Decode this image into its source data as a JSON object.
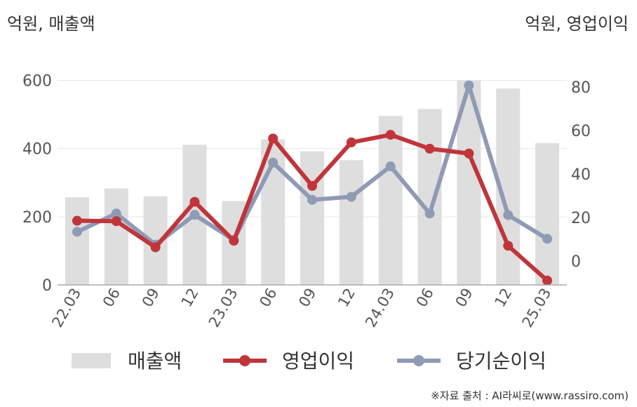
{
  "header": {
    "left_unit": "억원, 매출액",
    "right_unit": "억원, 영업이익"
  },
  "source": "※자료 출처 : AI라씨로(www.rassiro.com)",
  "colors": {
    "revenue": "#dedede",
    "operating_profit": "#c0353a",
    "net_income": "#8f9ab5",
    "axis": "#aaaaaa",
    "grid": "#e6e6e6",
    "text": "#555555"
  },
  "chart_data": {
    "type": "bar+line",
    "categories": [
      "22.03",
      "06",
      "09",
      "12",
      "23.03",
      "06",
      "09",
      "12",
      "24.03",
      "06",
      "09",
      "12",
      "25.03"
    ],
    "series": [
      {
        "name": "매출액",
        "type": "bar",
        "axis": "left",
        "values": [
          257,
          283,
          260,
          411,
          246,
          427,
          392,
          366,
          496,
          516,
          600,
          576,
          416
        ]
      },
      {
        "name": "영업이익",
        "type": "line",
        "axis": "right",
        "values": [
          18.5,
          18.3,
          6.3,
          27.2,
          9.3,
          56.3,
          34.5,
          54.5,
          58.0,
          51.6,
          49.4,
          7.0,
          -9.0
        ]
      },
      {
        "name": "당기순이익",
        "type": "line",
        "axis": "right",
        "values": [
          13.4,
          21.8,
          7.5,
          21.2,
          9.7,
          45.2,
          28.1,
          29.5,
          43.5,
          21.8,
          80.7,
          21.1,
          10.2
        ]
      }
    ],
    "left_axis": {
      "ticks": [
        "0",
        "200",
        "400",
        "600"
      ],
      "range": [
        0,
        630
      ]
    },
    "right_axis": {
      "ticks": [
        "0",
        "20",
        "40",
        "60",
        "80"
      ],
      "range": [
        -11,
        87.7
      ]
    },
    "grid": true,
    "legend": "bottom"
  }
}
